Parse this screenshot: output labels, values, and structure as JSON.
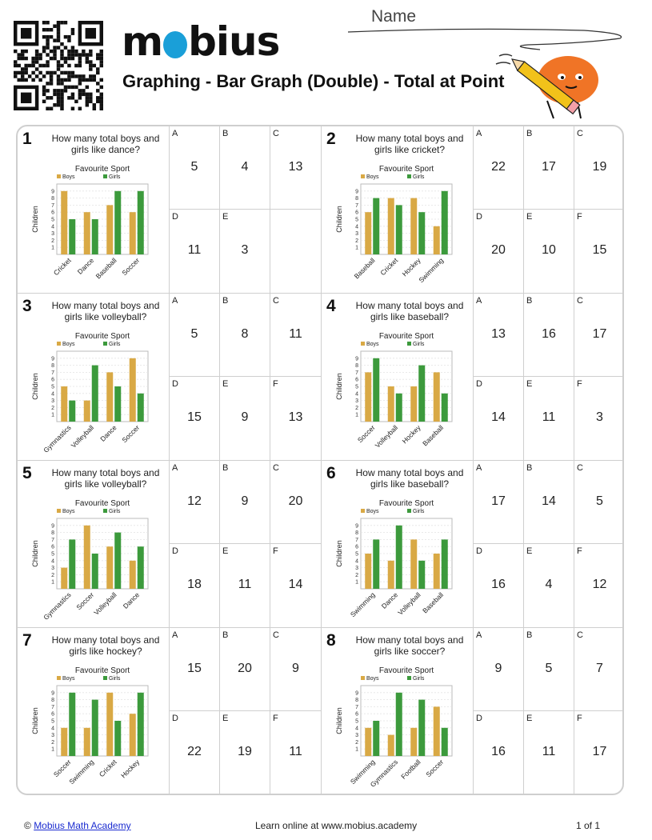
{
  "header": {
    "brand": "mobius",
    "title": "Graphing - Bar Graph (Double) - Total at Point",
    "name_label": "Name"
  },
  "colors": {
    "boys": "#d9a945",
    "girls": "#3c9a3c",
    "border": "#cfcfcf"
  },
  "questions": [
    {
      "num": "1",
      "question": "How many total boys and girls like dance?",
      "chart_data": {
        "type": "bar",
        "title": "Favourite Sport",
        "ylabel": "Children",
        "ylim": [
          0,
          10
        ],
        "yticks": [
          "1",
          "2",
          "3",
          "4",
          "5",
          "6",
          "7",
          "8",
          "9"
        ],
        "categories": [
          "Cricket",
          "Dance",
          "Baseball",
          "Soccer"
        ],
        "series": [
          {
            "name": "Boys",
            "values": [
              9,
              6,
              7,
              6
            ]
          },
          {
            "name": "Girls",
            "values": [
              5,
              5,
              9,
              9
            ]
          }
        ]
      },
      "options": [
        {
          "letter": "A",
          "value": "5"
        },
        {
          "letter": "B",
          "value": "4"
        },
        {
          "letter": "C",
          "value": "13"
        },
        {
          "letter": "D",
          "value": "11"
        },
        {
          "letter": "E",
          "value": "3"
        }
      ]
    },
    {
      "num": "2",
      "question": "How many total boys and girls like cricket?",
      "chart_data": {
        "type": "bar",
        "title": "Favourite Sport",
        "ylabel": "Children",
        "ylim": [
          0,
          10
        ],
        "yticks": [
          "1",
          "2",
          "3",
          "4",
          "5",
          "6",
          "7",
          "8",
          "9"
        ],
        "categories": [
          "Baseball",
          "Cricket",
          "Hockey",
          "Swimming"
        ],
        "series": [
          {
            "name": "Boys",
            "values": [
              6,
              8,
              8,
              4
            ]
          },
          {
            "name": "Girls",
            "values": [
              8,
              7,
              6,
              9
            ]
          }
        ]
      },
      "options": [
        {
          "letter": "A",
          "value": "22"
        },
        {
          "letter": "B",
          "value": "17"
        },
        {
          "letter": "C",
          "value": "19"
        },
        {
          "letter": "D",
          "value": "20"
        },
        {
          "letter": "E",
          "value": "10"
        },
        {
          "letter": "F",
          "value": "15"
        }
      ]
    },
    {
      "num": "3",
      "question": "How many total boys and girls like volleyball?",
      "chart_data": {
        "type": "bar",
        "title": "Favourite Sport",
        "ylabel": "Children",
        "ylim": [
          0,
          10
        ],
        "yticks": [
          "1",
          "2",
          "3",
          "4",
          "5",
          "6",
          "7",
          "8",
          "9"
        ],
        "categories": [
          "Gymnastics",
          "Volleyball",
          "Dance",
          "Soccer"
        ],
        "series": [
          {
            "name": "Boys",
            "values": [
              5,
              3,
              7,
              9
            ]
          },
          {
            "name": "Girls",
            "values": [
              3,
              8,
              5,
              4
            ]
          }
        ]
      },
      "options": [
        {
          "letter": "A",
          "value": "5"
        },
        {
          "letter": "B",
          "value": "8"
        },
        {
          "letter": "C",
          "value": "11"
        },
        {
          "letter": "D",
          "value": "15"
        },
        {
          "letter": "E",
          "value": "9"
        },
        {
          "letter": "F",
          "value": "13"
        }
      ]
    },
    {
      "num": "4",
      "question": "How many total boys and girls like baseball?",
      "chart_data": {
        "type": "bar",
        "title": "Favourite Sport",
        "ylabel": "Children",
        "ylim": [
          0,
          10
        ],
        "yticks": [
          "1",
          "2",
          "3",
          "4",
          "5",
          "6",
          "7",
          "8",
          "9"
        ],
        "categories": [
          "Soccer",
          "Volleyball",
          "Hockey",
          "Baseball"
        ],
        "series": [
          {
            "name": "Boys",
            "values": [
              7,
              5,
              5,
              7
            ]
          },
          {
            "name": "Girls",
            "values": [
              9,
              4,
              8,
              4
            ]
          }
        ]
      },
      "options": [
        {
          "letter": "A",
          "value": "13"
        },
        {
          "letter": "B",
          "value": "16"
        },
        {
          "letter": "C",
          "value": "17"
        },
        {
          "letter": "D",
          "value": "14"
        },
        {
          "letter": "E",
          "value": "11"
        },
        {
          "letter": "F",
          "value": "3"
        }
      ]
    },
    {
      "num": "5",
      "question": "How many total boys and girls like volleyball?",
      "chart_data": {
        "type": "bar",
        "title": "Favourite Sport",
        "ylabel": "Children",
        "ylim": [
          0,
          10
        ],
        "yticks": [
          "1",
          "2",
          "3",
          "4",
          "5",
          "6",
          "7",
          "8",
          "9"
        ],
        "categories": [
          "Gymnastics",
          "Soccer",
          "Volleyball",
          "Dance"
        ],
        "series": [
          {
            "name": "Boys",
            "values": [
              3,
              9,
              6,
              4
            ]
          },
          {
            "name": "Girls",
            "values": [
              7,
              5,
              8,
              6
            ]
          }
        ]
      },
      "options": [
        {
          "letter": "A",
          "value": "12"
        },
        {
          "letter": "B",
          "value": "9"
        },
        {
          "letter": "C",
          "value": "20"
        },
        {
          "letter": "D",
          "value": "18"
        },
        {
          "letter": "E",
          "value": "11"
        },
        {
          "letter": "F",
          "value": "14"
        }
      ]
    },
    {
      "num": "6",
      "question": "How many total boys and girls like baseball?",
      "chart_data": {
        "type": "bar",
        "title": "Favourite Sport",
        "ylabel": "Children",
        "ylim": [
          0,
          10
        ],
        "yticks": [
          "1",
          "2",
          "3",
          "4",
          "5",
          "6",
          "7",
          "8",
          "9"
        ],
        "categories": [
          "Swimming",
          "Dance",
          "Volleyball",
          "Baseball"
        ],
        "series": [
          {
            "name": "Boys",
            "values": [
              5,
              4,
              7,
              5
            ]
          },
          {
            "name": "Girls",
            "values": [
              7,
              9,
              4,
              7
            ]
          }
        ]
      },
      "options": [
        {
          "letter": "A",
          "value": "17"
        },
        {
          "letter": "B",
          "value": "14"
        },
        {
          "letter": "C",
          "value": "5"
        },
        {
          "letter": "D",
          "value": "16"
        },
        {
          "letter": "E",
          "value": "4"
        },
        {
          "letter": "F",
          "value": "12"
        }
      ]
    },
    {
      "num": "7",
      "question": "How many total boys and girls like hockey?",
      "chart_data": {
        "type": "bar",
        "title": "Favourite Sport",
        "ylabel": "Children",
        "ylim": [
          0,
          10
        ],
        "yticks": [
          "1",
          "2",
          "3",
          "4",
          "5",
          "6",
          "7",
          "8",
          "9"
        ],
        "categories": [
          "Soccer",
          "Swimming",
          "Cricket",
          "Hockey"
        ],
        "series": [
          {
            "name": "Boys",
            "values": [
              4,
              4,
              9,
              6
            ]
          },
          {
            "name": "Girls",
            "values": [
              9,
              8,
              5,
              9
            ]
          }
        ]
      },
      "options": [
        {
          "letter": "A",
          "value": "15"
        },
        {
          "letter": "B",
          "value": "20"
        },
        {
          "letter": "C",
          "value": "9"
        },
        {
          "letter": "D",
          "value": "22"
        },
        {
          "letter": "E",
          "value": "19"
        },
        {
          "letter": "F",
          "value": "11"
        }
      ]
    },
    {
      "num": "8",
      "question": "How many total boys and girls like soccer?",
      "chart_data": {
        "type": "bar",
        "title": "Favourite Sport",
        "ylabel": "Children",
        "ylim": [
          0,
          10
        ],
        "yticks": [
          "1",
          "2",
          "3",
          "4",
          "5",
          "6",
          "7",
          "8",
          "9"
        ],
        "categories": [
          "Swimming",
          "Gymnastics",
          "Football",
          "Soccer"
        ],
        "series": [
          {
            "name": "Boys",
            "values": [
              4,
              3,
              4,
              7
            ]
          },
          {
            "name": "Girls",
            "values": [
              5,
              9,
              8,
              4
            ]
          }
        ]
      },
      "options": [
        {
          "letter": "A",
          "value": "9"
        },
        {
          "letter": "B",
          "value": "5"
        },
        {
          "letter": "C",
          "value": "7"
        },
        {
          "letter": "D",
          "value": "16"
        },
        {
          "letter": "E",
          "value": "11"
        },
        {
          "letter": "F",
          "value": "17"
        }
      ]
    }
  ],
  "footer": {
    "copyright": "©",
    "link": "Mobius Math Academy",
    "center": "Learn online at www.mobius.academy",
    "page": "1 of 1"
  }
}
